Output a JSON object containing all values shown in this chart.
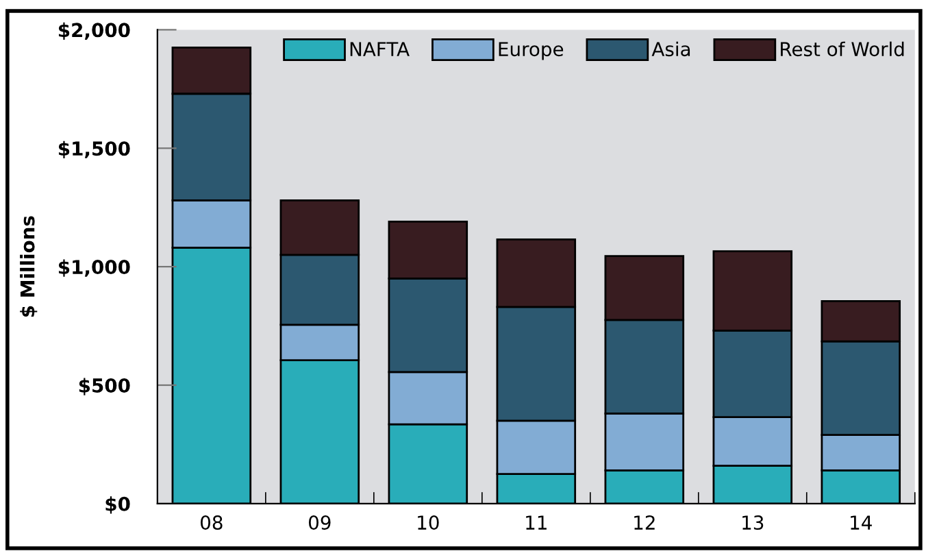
{
  "chart_data": {
    "type": "bar",
    "stacked": true,
    "ylabel": "$ Millions",
    "categories": [
      "08",
      "09",
      "10",
      "11",
      "12",
      "13",
      "14"
    ],
    "series": [
      {
        "name": "NAFTA",
        "color": "#29adb9",
        "values": [
          1080,
          605,
          335,
          125,
          140,
          160,
          140
        ]
      },
      {
        "name": "Europe",
        "color": "#82acd4",
        "values": [
          200,
          150,
          220,
          225,
          240,
          205,
          150
        ]
      },
      {
        "name": "Asia",
        "color": "#2c5870",
        "values": [
          450,
          295,
          395,
          480,
          395,
          365,
          395
        ]
      },
      {
        "name": "Rest of World",
        "color": "#381c20",
        "values": [
          195,
          230,
          240,
          285,
          270,
          335,
          170
        ]
      }
    ],
    "ylim": [
      0,
      2000
    ],
    "yticks": [
      {
        "value": 0,
        "label": "$0"
      },
      {
        "value": 500,
        "label": "$500"
      },
      {
        "value": 1000,
        "label": "$1,000"
      },
      {
        "value": 1500,
        "label": "$1,500"
      },
      {
        "value": 2000,
        "label": "$2,000"
      }
    ],
    "grid": false,
    "legend": "top right"
  }
}
